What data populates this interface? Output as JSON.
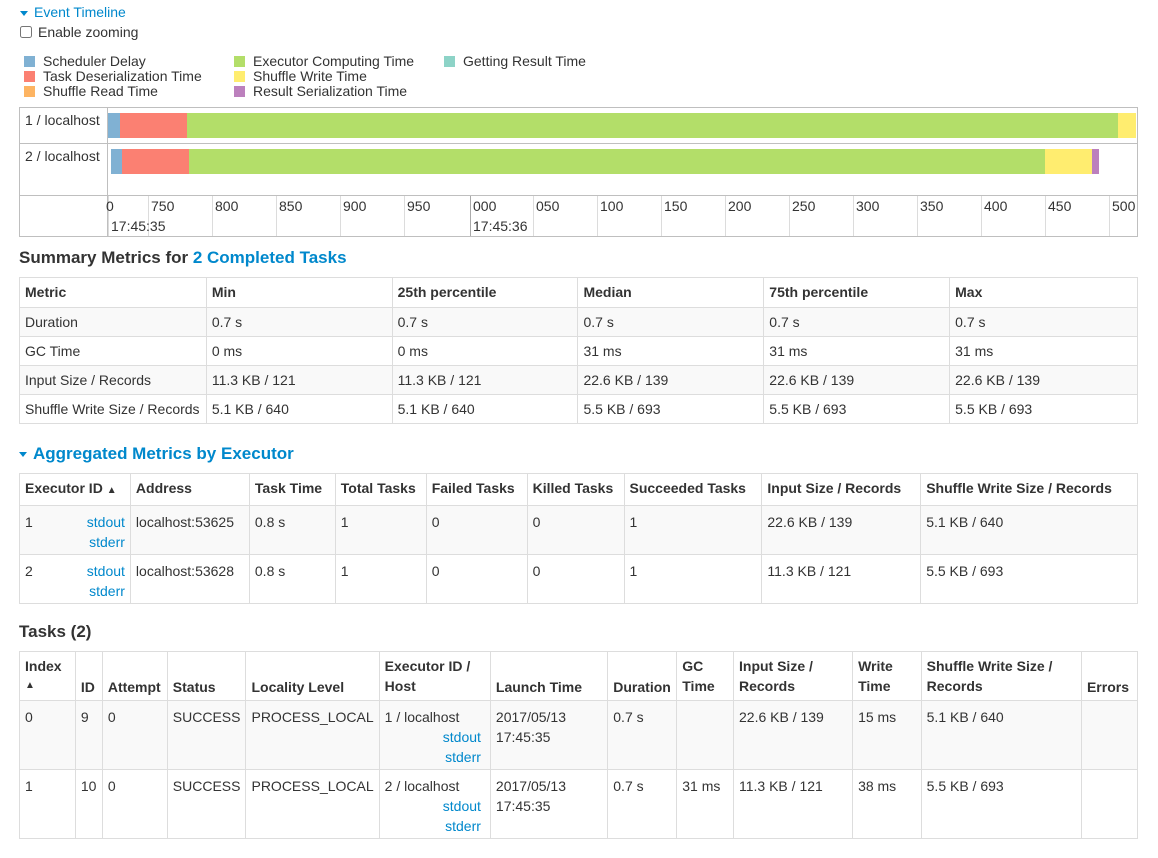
{
  "timeline": {
    "toggle_label": "Event Timeline",
    "zoom_label": "Enable zooming",
    "zoom_checked": false,
    "legend": [
      {
        "label": "Scheduler Delay",
        "color": "#80b1d3"
      },
      {
        "label": "Task Deserialization Time",
        "color": "#fb8072"
      },
      {
        "label": "Shuffle Read Time",
        "color": "#fdb462"
      },
      {
        "label": "Executor Computing Time",
        "color": "#b3de69"
      },
      {
        "label": "Shuffle Write Time",
        "color": "#ffed6f"
      },
      {
        "label": "Result Serialization Time",
        "color": "#bc80bd"
      },
      {
        "label": "Getting Result Time",
        "color": "#8dd3c7"
      }
    ],
    "rows": [
      "1 / localhost",
      "2 / localhost"
    ],
    "axis_minor_labels": [
      "0",
      "750",
      "800",
      "850",
      "900",
      "950",
      "000",
      "050",
      "100",
      "150",
      "200",
      "250",
      "300",
      "350",
      "400",
      "450",
      "500"
    ],
    "axis_major_labels": [
      "17:45:35",
      "17:45:36"
    ]
  },
  "summary": {
    "title_prefix": "Summary Metrics for ",
    "title_link": "2 Completed Tasks",
    "headers": [
      "Metric",
      "Min",
      "25th percentile",
      "Median",
      "75th percentile",
      "Max"
    ],
    "rows": [
      [
        "Duration",
        "0.7 s",
        "0.7 s",
        "0.7 s",
        "0.7 s",
        "0.7 s"
      ],
      [
        "GC Time",
        "0 ms",
        "0 ms",
        "31 ms",
        "31 ms",
        "31 ms"
      ],
      [
        "Input Size / Records",
        "11.3 KB / 121",
        "11.3 KB / 121",
        "22.6 KB / 139",
        "22.6 KB / 139",
        "22.6 KB / 139"
      ],
      [
        "Shuffle Write Size / Records",
        "5.1 KB / 640",
        "5.1 KB / 640",
        "5.5 KB / 693",
        "5.5 KB / 693",
        "5.5 KB / 693"
      ]
    ]
  },
  "aggregated": {
    "title": "Aggregated Metrics by Executor",
    "headers": [
      "Executor ID",
      "Address",
      "Task Time",
      "Total Tasks",
      "Failed Tasks",
      "Killed Tasks",
      "Succeeded Tasks",
      "Input Size / Records",
      "Shuffle Write Size / Records"
    ],
    "sort_indicator": "▲",
    "rows": [
      {
        "id": "1",
        "stdout": "stdout",
        "stderr": "stderr",
        "address": "localhost:53625",
        "task_time": "0.8 s",
        "total": "1",
        "failed": "0",
        "killed": "0",
        "succeeded": "1",
        "input": "22.6 KB / 139",
        "shuffle_write": "5.1 KB / 640"
      },
      {
        "id": "2",
        "stdout": "stdout",
        "stderr": "stderr",
        "address": "localhost:53628",
        "task_time": "0.8 s",
        "total": "1",
        "failed": "0",
        "killed": "0",
        "succeeded": "1",
        "input": "11.3 KB / 121",
        "shuffle_write": "5.5 KB / 693"
      }
    ]
  },
  "tasks": {
    "title": "Tasks (2)",
    "headers": {
      "index": "Index",
      "index_sort": "▲",
      "id": "ID",
      "attempt": "Attempt",
      "status": "Status",
      "locality": "Locality Level",
      "executor_1": "Executor ID /",
      "executor_2": "Host",
      "launch": "Launch Time",
      "duration": "Duration",
      "gc_1": "GC",
      "gc_2": "Time",
      "input_1": "Input Size /",
      "input_2": "Records",
      "write_1": "Write",
      "write_2": "Time",
      "shuffle_1": "Shuffle Write Size /",
      "shuffle_2": "Records",
      "errors": "Errors"
    },
    "rows": [
      {
        "index": "0",
        "id": "9",
        "attempt": "0",
        "status": "SUCCESS",
        "locality": "PROCESS_LOCAL",
        "executor": "1 / localhost",
        "stdout": "stdout",
        "stderr": "stderr",
        "launch_date": "2017/05/13",
        "launch_time": "17:45:35",
        "duration": "0.7 s",
        "gc": "",
        "input": "22.6 KB / 139",
        "write_time": "15 ms",
        "shuffle_write": "5.1 KB / 640",
        "errors": ""
      },
      {
        "index": "1",
        "id": "10",
        "attempt": "0",
        "status": "SUCCESS",
        "locality": "PROCESS_LOCAL",
        "executor": "2 / localhost",
        "stdout": "stdout",
        "stderr": "stderr",
        "launch_date": "2017/05/13",
        "launch_time": "17:45:35",
        "duration": "0.7 s",
        "gc": "31 ms",
        "input": "11.3 KB / 121",
        "write_time": "38 ms",
        "shuffle_write": "5.5 KB / 693",
        "errors": ""
      }
    ]
  }
}
